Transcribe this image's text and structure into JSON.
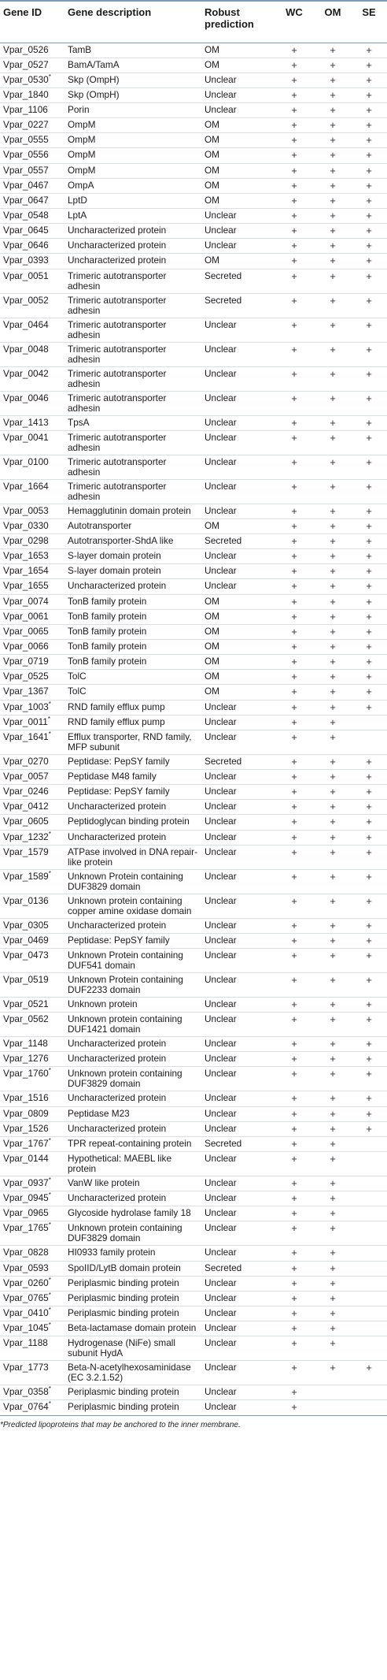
{
  "header": {
    "gene_id": "Gene ID",
    "description": "Gene description",
    "prediction": "Robust prediction",
    "wc": "WC",
    "om": "OM",
    "se": "SE"
  },
  "rows": [
    {
      "id": "Vpar_0526",
      "star": "",
      "desc": "TamB",
      "pred": "OM",
      "wc": "+",
      "om": "+",
      "se": "+"
    },
    {
      "id": "Vpar_0527",
      "star": "",
      "desc": "BamA/TamA",
      "pred": "OM",
      "wc": "+",
      "om": "+",
      "se": "+"
    },
    {
      "id": "Vpar_0530",
      "star": "*",
      "desc": "Skp (OmpH)",
      "pred": "Unclear",
      "wc": "+",
      "om": "+",
      "se": "+"
    },
    {
      "id": "Vpar_1840",
      "star": "",
      "desc": "Skp (OmpH)",
      "pred": "Unclear",
      "wc": "+",
      "om": "+",
      "se": "+"
    },
    {
      "id": "Vpar_1106",
      "star": "",
      "desc": "Porin",
      "pred": "Unclear",
      "wc": "+",
      "om": "+",
      "se": "+"
    },
    {
      "id": "Vpar_0227",
      "star": "",
      "desc": "OmpM",
      "pred": "OM",
      "wc": "+",
      "om": "+",
      "se": "+"
    },
    {
      "id": "Vpar_0555",
      "star": "",
      "desc": "OmpM",
      "pred": "OM",
      "wc": "+",
      "om": "+",
      "se": "+"
    },
    {
      "id": "Vpar_0556",
      "star": "",
      "desc": "OmpM",
      "pred": "OM",
      "wc": "+",
      "om": "+",
      "se": "+"
    },
    {
      "id": "Vpar_0557",
      "star": "",
      "desc": "OmpM",
      "pred": "OM",
      "wc": "+",
      "om": "+",
      "se": "+"
    },
    {
      "id": "Vpar_0467",
      "star": "",
      "desc": "OmpA",
      "pred": "OM",
      "wc": "+",
      "om": "+",
      "se": "+"
    },
    {
      "id": "Vpar_0647",
      "star": "",
      "desc": "LptD",
      "pred": "OM",
      "wc": "+",
      "om": "+",
      "se": "+"
    },
    {
      "id": "Vpar_0548",
      "star": "",
      "desc": "LptA",
      "pred": "Unclear",
      "wc": "+",
      "om": "+",
      "se": "+"
    },
    {
      "id": "Vpar_0645",
      "star": "",
      "desc": "Uncharacterized protein",
      "pred": "Unclear",
      "wc": "+",
      "om": "+",
      "se": "+"
    },
    {
      "id": "Vpar_0646",
      "star": "",
      "desc": "Uncharacterized protein",
      "pred": "Unclear",
      "wc": "+",
      "om": "+",
      "se": "+"
    },
    {
      "id": "Vpar_0393",
      "star": "",
      "desc": "Uncharacterized protein",
      "pred": "OM",
      "wc": "+",
      "om": "+",
      "se": "+"
    },
    {
      "id": "Vpar_0051",
      "star": "",
      "desc": "Trimeric autotransporter adhesin",
      "pred": "Secreted",
      "wc": "+",
      "om": "+",
      "se": "+"
    },
    {
      "id": "Vpar_0052",
      "star": "",
      "desc": "Trimeric autotransporter adhesin",
      "pred": "Secreted",
      "wc": "+",
      "om": "+",
      "se": "+"
    },
    {
      "id": "Vpar_0464",
      "star": "",
      "desc": "Trimeric autotransporter adhesin",
      "pred": "Unclear",
      "wc": "+",
      "om": "+",
      "se": "+"
    },
    {
      "id": "Vpar_0048",
      "star": "",
      "desc": "Trimeric autotransporter adhesin",
      "pred": "Unclear",
      "wc": "+",
      "om": "+",
      "se": "+"
    },
    {
      "id": "Vpar_0042",
      "star": "",
      "desc": "Trimeric autotransporter adhesin",
      "pred": "Unclear",
      "wc": "+",
      "om": "+",
      "se": "+"
    },
    {
      "id": "Vpar_0046",
      "star": "",
      "desc": "Trimeric autotransporter adhesin",
      "pred": "Unclear",
      "wc": "+",
      "om": "+",
      "se": "+"
    },
    {
      "id": "Vpar_1413",
      "star": "",
      "desc": "TpsA",
      "pred": "Unclear",
      "wc": "+",
      "om": "+",
      "se": "+"
    },
    {
      "id": "Vpar_0041",
      "star": "",
      "desc": "Trimeric autotransporter adhesin",
      "pred": "Unclear",
      "wc": "+",
      "om": "+",
      "se": "+"
    },
    {
      "id": "Vpar_0100",
      "star": "",
      "desc": "Trimeric autotransporter adhesin",
      "pred": "Unclear",
      "wc": "+",
      "om": "+",
      "se": "+"
    },
    {
      "id": "Vpar_1664",
      "star": "",
      "desc": "Trimeric autotransporter adhesin",
      "pred": "Unclear",
      "wc": "+",
      "om": "+",
      "se": "+"
    },
    {
      "id": "Vpar_0053",
      "star": "",
      "desc": "Hemagglutinin domain protein",
      "pred": "Unclear",
      "wc": "+",
      "om": "+",
      "se": "+"
    },
    {
      "id": "Vpar_0330",
      "star": "",
      "desc": "Autotransporter",
      "pred": "OM",
      "wc": "+",
      "om": "+",
      "se": "+"
    },
    {
      "id": "Vpar_0298",
      "star": "",
      "desc": "Autotransporter-ShdA like",
      "pred": "Secreted",
      "wc": "+",
      "om": "+",
      "se": "+"
    },
    {
      "id": "Vpar_1653",
      "star": "",
      "desc": "S-layer domain protein",
      "pred": "Unclear",
      "wc": "+",
      "om": "+",
      "se": "+"
    },
    {
      "id": "Vpar_1654",
      "star": "",
      "desc": "S-layer domain protein",
      "pred": "Unclear",
      "wc": "+",
      "om": "+",
      "se": "+"
    },
    {
      "id": "Vpar_1655",
      "star": "",
      "desc": "Uncharacterized protein",
      "pred": "Unclear",
      "wc": "+",
      "om": "+",
      "se": "+"
    },
    {
      "id": "Vpar_0074",
      "star": "",
      "desc": "TonB family protein",
      "pred": "OM",
      "wc": "+",
      "om": "+",
      "se": "+"
    },
    {
      "id": "Vpar_0061",
      "star": "",
      "desc": "TonB family protein",
      "pred": "OM",
      "wc": "+",
      "om": "+",
      "se": "+"
    },
    {
      "id": "Vpar_0065",
      "star": "",
      "desc": "TonB family protein",
      "pred": "OM",
      "wc": "+",
      "om": "+",
      "se": "+"
    },
    {
      "id": "Vpar_0066",
      "star": "",
      "desc": "TonB family protein",
      "pred": "OM",
      "wc": "+",
      "om": "+",
      "se": "+"
    },
    {
      "id": "Vpar_0719",
      "star": "",
      "desc": "TonB family protein",
      "pred": "OM",
      "wc": "+",
      "om": "+",
      "se": "+"
    },
    {
      "id": "Vpar_0525",
      "star": "",
      "desc": "TolC",
      "pred": "OM",
      "wc": "+",
      "om": "+",
      "se": "+"
    },
    {
      "id": "Vpar_1367",
      "star": "",
      "desc": "TolC",
      "pred": "OM",
      "wc": "+",
      "om": "+",
      "se": "+"
    },
    {
      "id": "Vpar_1003",
      "star": "*",
      "desc": "RND family efflux pump",
      "pred": "Unclear",
      "wc": "+",
      "om": "+",
      "se": "+"
    },
    {
      "id": "Vpar_0011",
      "star": "*",
      "desc": "RND family efflux pump",
      "pred": "Unclear",
      "wc": "+",
      "om": "+",
      "se": ""
    },
    {
      "id": "Vpar_1641",
      "star": "*",
      "desc": "Efflux transporter, RND family, MFP subunit",
      "pred": "Unclear",
      "wc": "+",
      "om": "+",
      "se": ""
    },
    {
      "id": "Vpar_0270",
      "star": "",
      "desc": "Peptidase: PepSY family",
      "pred": "Secreted",
      "wc": "+",
      "om": "+",
      "se": "+"
    },
    {
      "id": "Vpar_0057",
      "star": "",
      "desc": "Peptidase M48 family",
      "pred": "Unclear",
      "wc": "+",
      "om": "+",
      "se": "+"
    },
    {
      "id": "Vpar_0246",
      "star": "",
      "desc": "Peptidase: PepSY family",
      "pred": "Unclear",
      "wc": "+",
      "om": "+",
      "se": "+"
    },
    {
      "id": "Vpar_0412",
      "star": "",
      "desc": "Uncharacterized protein",
      "pred": "Unclear",
      "wc": "+",
      "om": "+",
      "se": "+"
    },
    {
      "id": "Vpar_0605",
      "star": "",
      "desc": "Peptidoglycan binding protein",
      "pred": "Unclear",
      "wc": "+",
      "om": "+",
      "se": "+"
    },
    {
      "id": "Vpar_1232",
      "star": "*",
      "desc": "Uncharacterized protein",
      "pred": "Unclear",
      "wc": "+",
      "om": "+",
      "se": "+"
    },
    {
      "id": "Vpar_1579",
      "star": "",
      "desc": "ATPase involved in DNA repair-like protein",
      "pred": "Unclear",
      "wc": "+",
      "om": "+",
      "se": "+"
    },
    {
      "id": "Vpar_1589",
      "star": "*",
      "desc": "Unknown Protein containing DUF3829 domain",
      "pred": "Unclear",
      "wc": "+",
      "om": "+",
      "se": "+"
    },
    {
      "id": "Vpar_0136",
      "star": "",
      "desc": "Unknown protein containing copper amine oxidase domain",
      "pred": "Unclear",
      "wc": "+",
      "om": "+",
      "se": "+"
    },
    {
      "id": "Vpar_0305",
      "star": "",
      "desc": "Uncharacterized protein",
      "pred": "Unclear",
      "wc": "+",
      "om": "+",
      "se": "+"
    },
    {
      "id": "Vpar_0469",
      "star": "",
      "desc": "Peptidase: PepSY family",
      "pred": "Unclear",
      "wc": "+",
      "om": "+",
      "se": "+"
    },
    {
      "id": "Vpar_0473",
      "star": "",
      "desc": "Unknown Protein containing DUF541 domain",
      "pred": "Unclear",
      "wc": "+",
      "om": "+",
      "se": "+"
    },
    {
      "id": "Vpar_0519",
      "star": "",
      "desc": "Unknown Protein containing DUF2233 domain",
      "pred": "Unclear",
      "wc": "+",
      "om": "+",
      "se": "+"
    },
    {
      "id": "Vpar_0521",
      "star": "",
      "desc": "Unknown protein",
      "pred": "Unclear",
      "wc": "+",
      "om": "+",
      "se": "+"
    },
    {
      "id": "Vpar_0562",
      "star": "",
      "desc": "Unknown protein containing DUF1421 domain",
      "pred": "Unclear",
      "wc": "+",
      "om": "+",
      "se": "+"
    },
    {
      "id": "Vpar_1148",
      "star": "",
      "desc": "Uncharacterized protein",
      "pred": "Unclear",
      "wc": "+",
      "om": "+",
      "se": "+"
    },
    {
      "id": "Vpar_1276",
      "star": "",
      "desc": "Uncharacterized protein",
      "pred": "Unclear",
      "wc": "+",
      "om": "+",
      "se": "+"
    },
    {
      "id": "Vpar_1760",
      "star": "*",
      "desc": "Unknown protein containing DUF3829 domain",
      "pred": "Unclear",
      "wc": "+",
      "om": "+",
      "se": "+"
    },
    {
      "id": "Vpar_1516",
      "star": "",
      "desc": "Uncharacterized protein",
      "pred": "Unclear",
      "wc": "+",
      "om": "+",
      "se": "+"
    },
    {
      "id": "Vpar_0809",
      "star": "",
      "desc": "Peptidase M23",
      "pred": "Unclear",
      "wc": "+",
      "om": "+",
      "se": "+"
    },
    {
      "id": "Vpar_1526",
      "star": "",
      "desc": "Uncharacterized protein",
      "pred": "Unclear",
      "wc": "+",
      "om": "+",
      "se": "+"
    },
    {
      "id": "Vpar_1767",
      "star": "*",
      "desc": "TPR repeat-containing protein",
      "pred": "Secreted",
      "wc": "+",
      "om": "+",
      "se": ""
    },
    {
      "id": "Vpar_0144",
      "star": "",
      "desc": "Hypothetical: MAEBL like protein",
      "pred": "Unclear",
      "wc": "+",
      "om": "+",
      "se": ""
    },
    {
      "id": "Vpar_0937",
      "star": "*",
      "desc": "VanW like protein",
      "pred": "Unclear",
      "wc": "+",
      "om": "+",
      "se": ""
    },
    {
      "id": "Vpar_0945",
      "star": "*",
      "desc": "Uncharacterized protein",
      "pred": "Unclear",
      "wc": "+",
      "om": "+",
      "se": ""
    },
    {
      "id": "Vpar_0965",
      "star": "",
      "desc": "Glycoside hydrolase family 18",
      "pred": "Unclear",
      "wc": "+",
      "om": "+",
      "se": ""
    },
    {
      "id": "Vpar_1765",
      "star": "*",
      "desc": "Unknown protein containing DUF3829 domain",
      "pred": "Unclear",
      "wc": "+",
      "om": "+",
      "se": ""
    },
    {
      "id": "Vpar_0828",
      "star": "",
      "desc": "HI0933 family protein",
      "pred": "Unclear",
      "wc": "+",
      "om": "+",
      "se": ""
    },
    {
      "id": "Vpar_0593",
      "star": "",
      "desc": "SpoIID/LytB domain protein",
      "pred": "Secreted",
      "wc": "+",
      "om": "+",
      "se": ""
    },
    {
      "id": "Vpar_0260",
      "star": "*",
      "desc": "Periplasmic binding protein",
      "pred": "Unclear",
      "wc": "+",
      "om": "+",
      "se": ""
    },
    {
      "id": "Vpar_0765",
      "star": "*",
      "desc": "Periplasmic binding protein",
      "pred": "Unclear",
      "wc": "+",
      "om": "+",
      "se": ""
    },
    {
      "id": "Vpar_0410",
      "star": "*",
      "desc": "Periplasmic binding protein",
      "pred": "Unclear",
      "wc": "+",
      "om": "+",
      "se": ""
    },
    {
      "id": "Vpar_1045",
      "star": "*",
      "desc": "Beta-lactamase domain protein",
      "pred": "Unclear",
      "wc": "+",
      "om": "+",
      "se": ""
    },
    {
      "id": "Vpar_1188",
      "star": "",
      "desc": "Hydrogenase (NiFe) small subunit HydA",
      "pred": "Unclear",
      "wc": "+",
      "om": "+",
      "se": ""
    },
    {
      "id": "Vpar_1773",
      "star": "",
      "desc": "Beta-N-acetylhexosaminidase (EC 3.2.1.52)",
      "pred": "Unclear",
      "wc": "+",
      "om": "+",
      "se": "+"
    },
    {
      "id": "Vpar_0358",
      "star": "*",
      "desc": "Periplasmic binding protein",
      "pred": "Unclear",
      "wc": "+",
      "om": "",
      "se": ""
    },
    {
      "id": "Vpar_0764",
      "star": "*",
      "desc": "Periplasmic binding protein",
      "pred": "Unclear",
      "wc": "+",
      "om": "",
      "se": ""
    }
  ],
  "footnote": "*Predicted lipoproteins that may be anchored to the inner membrane."
}
